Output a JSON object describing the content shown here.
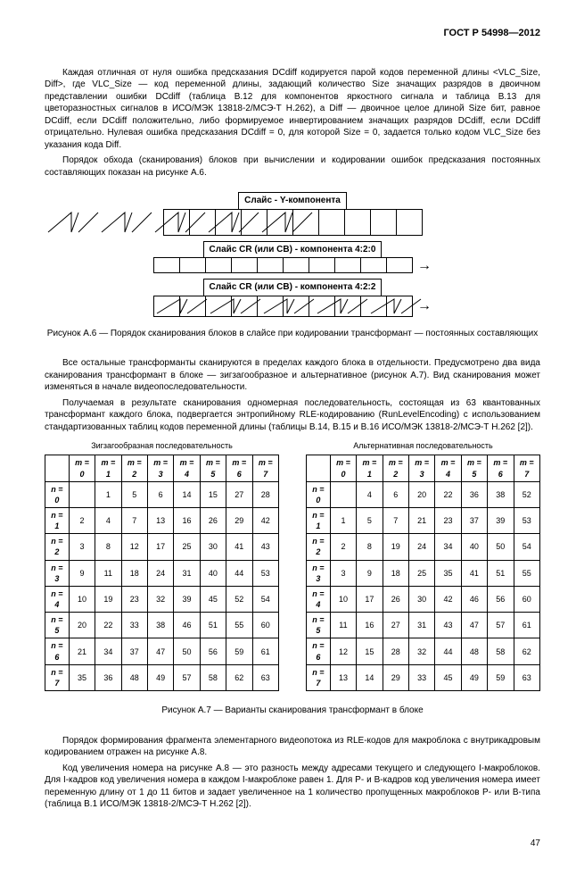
{
  "doc_id": "ГОСТ Р 54998—2012",
  "para1": "Каждая отличная от нуля ошибка предсказания DCdiff кодируется парой кодов переменной длины <VLC_Size, Diff>, где VLC_Size — код переменной длины, задающий количество Size значащих разрядов в двоичном представлении ошибки DCdiff (таблица В.12 для компонентов яркостного сигнала и таблица В.13 для цветоразностных сигналов в ИСО/МЭК 13818-2/МСЭ-Т Н.262), а Diff — двоичное целое длиной Size бит, равное DCdiff, если DCdiff положительно, либо формируемое инвертированием значащих разрядов DCdiff, если DCdiff отрицательно. Нулевая ошибка предсказания DCdiff = 0, для которой Size = 0, задается только кодом VLC_Size без указания кода Diff.",
  "para2": "Порядок обхода (сканирования) блоков при вычислении и кодировании ошибок предсказания постоянных составляющих показан на рисунке А.6.",
  "slice1": "Слайс - Y-компонента",
  "slice2": "Слайс CR (или CB) - компонента 4:2:0",
  "slice3": "Слайс CR (или CB) - компонента 4:2:2",
  "fig_a6": "Рисунок А.6 — Порядок сканирования блоков в слайсе при кодировании трансформант — постоянных составляющих",
  "para3": "Все остальные трансформанты сканируются в пределах каждого блока в отдельности. Предусмотрено два вида сканирования трансформант в блоке — зигзагообразное и альтернативное (рисунок А.7). Вид сканирования может изменяться в начале видеопоследовательности.",
  "para4": "Получаемая в результате сканирования одномерная последовательность, состоящая из 63 квантованных трансформант каждого блока, подвергается энтропийному RLE-кодированию (RunLevelEncoding) с использованием стандартизованных таблиц кодов переменной длины (таблицы В.14, В.15 и В.16 ИСО/МЭК 13818-2/МСЭ-Т Н.262 [2]).",
  "table1_caption": "Зигзагообразная последовательность",
  "table2_caption": "Альтернативная последовательность",
  "m_labels": [
    "m = 0",
    "m = 1",
    "m = 2",
    "m = 3",
    "m = 4",
    "m = 5",
    "m = 6",
    "m = 7"
  ],
  "n_labels": [
    "n = 0",
    "n = 1",
    "n = 2",
    "n = 3",
    "n = 4",
    "n = 5",
    "n = 6",
    "n = 7"
  ],
  "zigzag": [
    [
      "",
      "1",
      "5",
      "6",
      "14",
      "15",
      "27",
      "28"
    ],
    [
      "2",
      "4",
      "7",
      "13",
      "16",
      "26",
      "29",
      "42"
    ],
    [
      "3",
      "8",
      "12",
      "17",
      "25",
      "30",
      "41",
      "43"
    ],
    [
      "9",
      "11",
      "18",
      "24",
      "31",
      "40",
      "44",
      "53"
    ],
    [
      "10",
      "19",
      "23",
      "32",
      "39",
      "45",
      "52",
      "54"
    ],
    [
      "20",
      "22",
      "33",
      "38",
      "46",
      "51",
      "55",
      "60"
    ],
    [
      "21",
      "34",
      "37",
      "47",
      "50",
      "56",
      "59",
      "61"
    ],
    [
      "35",
      "36",
      "48",
      "49",
      "57",
      "58",
      "62",
      "63"
    ]
  ],
  "alt": [
    [
      "",
      "4",
      "6",
      "20",
      "22",
      "36",
      "38",
      "52"
    ],
    [
      "1",
      "5",
      "7",
      "21",
      "23",
      "37",
      "39",
      "53"
    ],
    [
      "2",
      "8",
      "19",
      "24",
      "34",
      "40",
      "50",
      "54"
    ],
    [
      "3",
      "9",
      "18",
      "25",
      "35",
      "41",
      "51",
      "55"
    ],
    [
      "10",
      "17",
      "26",
      "30",
      "42",
      "46",
      "56",
      "60"
    ],
    [
      "11",
      "16",
      "27",
      "31",
      "43",
      "47",
      "57",
      "61"
    ],
    [
      "12",
      "15",
      "28",
      "32",
      "44",
      "48",
      "58",
      "62"
    ],
    [
      "13",
      "14",
      "29",
      "33",
      "45",
      "49",
      "59",
      "63"
    ]
  ],
  "fig_a7": "Рисунок А.7 — Варианты сканирования трансформант в блоке",
  "para5": "Порядок формирования фрагмента элементарного видеопотока из RLE-кодов для макроблока с внутрикадровым кодированием отражен на рисунке А.8.",
  "para6": "Код увеличения номера на рисунке А.8 — это разность между адресами текущего и следующего I-макроблоков. Для I-кадров код увеличения номера в каждом I-макроблоке равен 1. Для P- и B-кадров код увеличения номера имеет переменную длину от 1 до 11 битов и задает увеличенное на 1 количество пропущенных макроблоков P- или B-типа (таблица В.1 ИСО/МЭК 13818-2/МСЭ-Т Н.262 [2]).",
  "page_num": "47"
}
